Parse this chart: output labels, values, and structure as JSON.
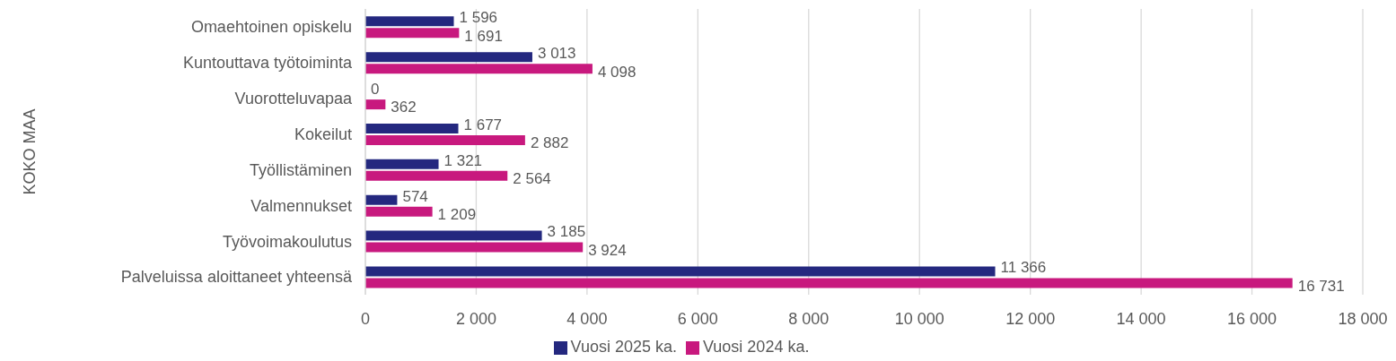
{
  "chart_data": {
    "type": "bar",
    "orientation": "horizontal",
    "annotations": [
      "KOKO MAA"
    ],
    "categories": [
      "Omaehtoinen opiskelu",
      "Kuntouttava työtoiminta",
      "Vuorotteluvapaa",
      "Kokeilut",
      "Työllistäminen",
      "Valmennukset",
      "Työvoimakoulutus",
      "Palveluissa aloittaneet yhteensä"
    ],
    "series": [
      {
        "name": "Vuosi 2025 ka.",
        "color": "#24287f",
        "values": [
          1596,
          3013,
          0,
          1677,
          1321,
          574,
          3185,
          11366
        ],
        "value_labels": [
          "1 596",
          "3 013",
          "0",
          "1 677",
          "1 321",
          "574",
          "3 185",
          "11 366"
        ]
      },
      {
        "name": "Vuosi 2024 ka.",
        "color": "#c8197e",
        "values": [
          1691,
          4098,
          362,
          2882,
          2564,
          1209,
          3924,
          16731
        ],
        "value_labels": [
          "1 691",
          "4 098",
          "362",
          "2 882",
          "2 564",
          "1 209",
          "3 924",
          "16 731"
        ]
      }
    ],
    "xlim": [
      0,
      18000
    ],
    "xticks": [
      0,
      {
        "value": 2000,
        "label": "2 000"
      },
      {
        "value": 4000,
        "label": "4 000"
      },
      {
        "value": 6000,
        "label": "6 000"
      },
      {
        "value": 8000,
        "label": "8 000"
      },
      {
        "value": 10000,
        "label": "10 000"
      },
      {
        "value": 12000,
        "label": "12 000"
      },
      {
        "value": 14000,
        "label": "14 000"
      },
      {
        "value": 16000,
        "label": "16 000"
      },
      {
        "value": 18000,
        "label": "18 000"
      }
    ],
    "grid": "x",
    "legend": "bottom"
  }
}
